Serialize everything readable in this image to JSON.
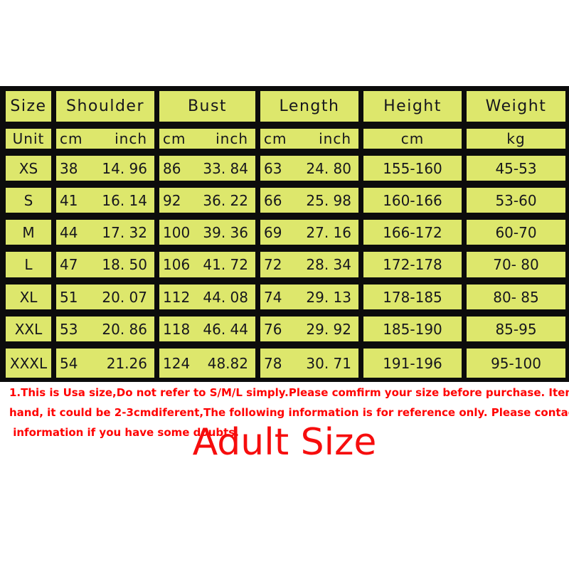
{
  "colors": {
    "cell_background": "#dde76c",
    "table_grid": "#0c0c0c",
    "cell_text": "#16161d",
    "warning_red": "#ff0000",
    "title_red": "#f60d0d"
  },
  "size_chart": {
    "headers": {
      "size": "Size",
      "shoulder": "Shoulder",
      "bust": "Bust",
      "length": "Length",
      "height": "Height",
      "weight": "Weight"
    },
    "unit_row": {
      "label": "Unit",
      "shoulder_cm": "cm",
      "shoulder_inch": "inch",
      "bust_cm": "cm",
      "bust_inch": "inch",
      "length_cm": "cm",
      "length_inch": "inch",
      "height": "cm",
      "weight": "kg"
    },
    "rows": [
      {
        "size": "XS",
        "shoulder_cm": "38",
        "shoulder_inch": "14. 96",
        "bust_cm": "86",
        "bust_inch": "33. 84",
        "length_cm": "63",
        "length_inch": "24. 80",
        "height": "155-160",
        "weight": "45-53"
      },
      {
        "size": "S",
        "shoulder_cm": "41",
        "shoulder_inch": "16. 14",
        "bust_cm": "92",
        "bust_inch": "36. 22",
        "length_cm": "66",
        "length_inch": "25. 98",
        "height": "160-166",
        "weight": "53-60"
      },
      {
        "size": "M",
        "shoulder_cm": "44",
        "shoulder_inch": "17. 32",
        "bust_cm": "100",
        "bust_inch": "39. 36",
        "length_cm": "69",
        "length_inch": "27. 16",
        "height": "166-172",
        "weight": "60-70"
      },
      {
        "size": "L",
        "shoulder_cm": "47",
        "shoulder_inch": "18. 50",
        "bust_cm": "106",
        "bust_inch": "41. 72",
        "length_cm": "72",
        "length_inch": "28. 34",
        "height": "172-178",
        "weight": "70- 80"
      },
      {
        "size": "XL",
        "shoulder_cm": "51",
        "shoulder_inch": "20. 07",
        "bust_cm": "112",
        "bust_inch": "44. 08",
        "length_cm": "74",
        "length_inch": "29. 13",
        "height": "178-185",
        "weight": "80- 85"
      },
      {
        "size": "XXL",
        "shoulder_cm": "53",
        "shoulder_inch": "20. 86",
        "bust_cm": "118",
        "bust_inch": "46. 44",
        "length_cm": "76",
        "length_inch": "29. 92",
        "height": "185-190",
        "weight": "85-95"
      },
      {
        "size": "XXXL",
        "shoulder_cm": "54",
        "shoulder_inch": "21.26",
        "bust_cm": "124",
        "bust_inch": "48.82",
        "length_cm": "78",
        "length_inch": "30. 71",
        "height": "191-196",
        "weight": "95-100"
      }
    ]
  },
  "disclaimer": {
    "lines": [
      "1.This is Usa size,Do not refer to S/M/L simply.Please comfirm your size before purchase. Item Measured by",
      "hand, it could be 2-3cmdiferent,The following information is for reference only. Please contact us to get the detailed",
      " information if you have some doubts."
    ]
  },
  "title": "Adult Size"
}
